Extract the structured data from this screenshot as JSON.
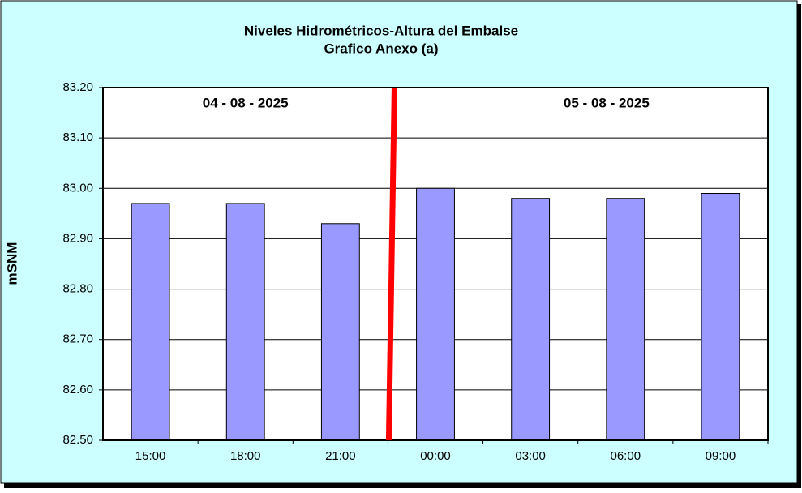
{
  "chart_data": {
    "type": "bar",
    "title": "Niveles Hidrométricos-Altura del Embalse",
    "subtitle": "Grafico Anexo (a)",
    "y_label": "mSNM",
    "annotations": [
      "04 - 08 - 2025",
      "05 - 08 - 2025"
    ],
    "categories": [
      "15:00",
      "18:00",
      "21:00",
      "00:00",
      "03:00",
      "06:00",
      "09:00"
    ],
    "values": [
      82.97,
      82.97,
      82.93,
      83.0,
      82.98,
      82.98,
      82.99
    ],
    "color": "#9999ff",
    "ylim": [
      82.5,
      83.2
    ],
    "yticks": [
      {
        "value": 82.5,
        "label": "82.50"
      },
      {
        "value": 82.6,
        "label": "82.60"
      },
      {
        "value": 82.7,
        "label": "82.70"
      },
      {
        "value": 82.8,
        "label": "82.80"
      },
      {
        "value": 82.9,
        "label": "82.90"
      },
      {
        "value": 83.0,
        "label": "83.00"
      },
      {
        "value": 83.1,
        "label": "83.10"
      },
      {
        "value": 83.2,
        "label": "83.20"
      }
    ],
    "grid": true
  }
}
